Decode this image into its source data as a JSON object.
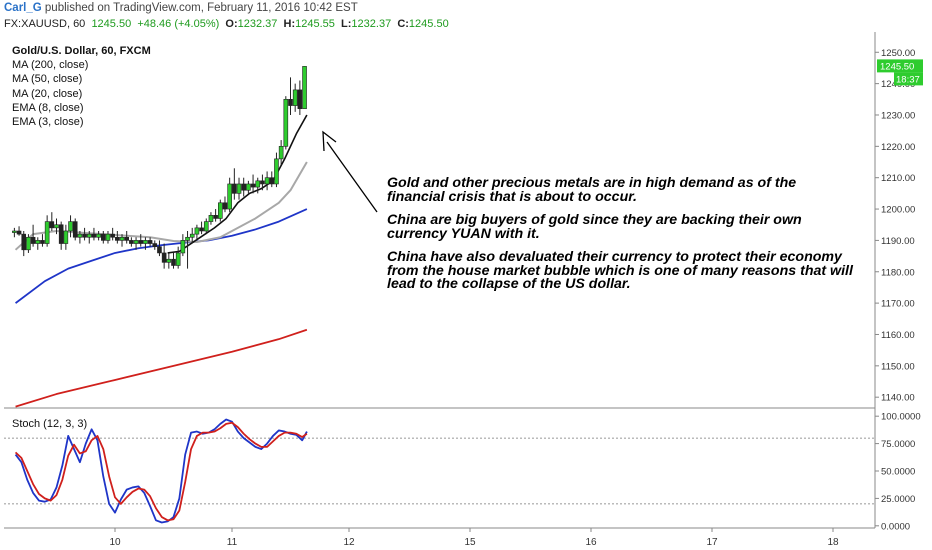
{
  "header": {
    "author": "Carl_G",
    "published_text": " published on TradingView.com, February 11, 2016 10:42 EST"
  },
  "quote": {
    "symbol": "FX:XAUUSD, 60",
    "last": "1245.50",
    "change": "+48.46 (+4.05%)",
    "open_label": "O:",
    "open": "1232.37",
    "high_label": "H:",
    "high": "1245.55",
    "low_label": "L:",
    "low": "1232.37",
    "close_label": "C:",
    "close": "1245.50"
  },
  "legend": {
    "title": "Gold/U.S. Dollar, 60, FXCM",
    "items": [
      "MA (200, close)",
      "MA (50, close)",
      "MA (20, close)",
      "EMA (8, close)",
      "EMA (3, close)"
    ]
  },
  "annotation": {
    "p1": "Gold and other precious metals are in high demand as of the financial crisis that is about to occur.",
    "p2": "China are big buyers of gold since they are backing their own currency YUAN with it.",
    "p3": "China have also devaluated their currency to protect their economy from the house market bubble which is one of many reasons that will lead to the collapse of the US dollar."
  },
  "stoch_label": "Stoch (12, 3, 3)",
  "colors": {
    "up": "#2ecc2e",
    "down": "#222222",
    "ma200": "#d0201c",
    "ma50": "#1f35c8",
    "ma20": "#a8a8a8",
    "ema8": "#111111",
    "stoch_k": "#1f35c8",
    "stoch_d": "#d0201c",
    "price_tag": "#2ecc2e",
    "author": "#2a72c8"
  },
  "chart_data": [
    {
      "type": "candlestick",
      "title": "Gold/U.S. Dollar, 60, FXCM",
      "x_ticks": [
        "10",
        "11",
        "12",
        "15",
        "16",
        "17",
        "18"
      ],
      "y_ticks": [
        "1140.00",
        "1150.00",
        "1160.00",
        "1170.00",
        "1180.00",
        "1190.00",
        "1200.00",
        "1210.00",
        "1220.00",
        "1230.00",
        "1240.00",
        "1250.00"
      ],
      "ylim": [
        1134,
        1252
      ],
      "last_price_tag": "1245.50",
      "countdown_tag": "18:37",
      "x_range_days": [
        9.15,
        11.95
      ],
      "candles": [
        {
          "t": 9.14,
          "o": 1192.5,
          "h": 1194,
          "l": 1191,
          "c": 1193
        },
        {
          "t": 9.18,
          "o": 1193,
          "h": 1194.5,
          "l": 1191.5,
          "c": 1192
        },
        {
          "t": 9.22,
          "o": 1192,
          "h": 1193,
          "l": 1185,
          "c": 1187
        },
        {
          "t": 9.26,
          "o": 1187,
          "h": 1192,
          "l": 1186,
          "c": 1191
        },
        {
          "t": 9.3,
          "o": 1191,
          "h": 1195,
          "l": 1188,
          "c": 1189
        },
        {
          "t": 9.34,
          "o": 1189,
          "h": 1191,
          "l": 1187,
          "c": 1190
        },
        {
          "t": 9.38,
          "o": 1190,
          "h": 1192,
          "l": 1188,
          "c": 1189
        },
        {
          "t": 9.42,
          "o": 1189,
          "h": 1198,
          "l": 1188,
          "c": 1196
        },
        {
          "t": 9.46,
          "o": 1196,
          "h": 1199,
          "l": 1193,
          "c": 1194
        },
        {
          "t": 9.5,
          "o": 1194,
          "h": 1197,
          "l": 1192,
          "c": 1195
        },
        {
          "t": 9.54,
          "o": 1195,
          "h": 1196,
          "l": 1187,
          "c": 1189
        },
        {
          "t": 9.58,
          "o": 1189,
          "h": 1195,
          "l": 1187,
          "c": 1193
        },
        {
          "t": 9.62,
          "o": 1193,
          "h": 1198,
          "l": 1191,
          "c": 1196
        },
        {
          "t": 9.66,
          "o": 1196,
          "h": 1197,
          "l": 1190,
          "c": 1191
        },
        {
          "t": 9.7,
          "o": 1191,
          "h": 1193,
          "l": 1189,
          "c": 1192
        },
        {
          "t": 9.74,
          "o": 1192,
          "h": 1194,
          "l": 1190,
          "c": 1191
        },
        {
          "t": 9.78,
          "o": 1191,
          "h": 1193,
          "l": 1189,
          "c": 1192
        },
        {
          "t": 9.82,
          "o": 1192,
          "h": 1194,
          "l": 1190,
          "c": 1191
        },
        {
          "t": 9.86,
          "o": 1191,
          "h": 1193,
          "l": 1190,
          "c": 1192
        },
        {
          "t": 9.9,
          "o": 1192,
          "h": 1193,
          "l": 1189,
          "c": 1190
        },
        {
          "t": 9.94,
          "o": 1190,
          "h": 1193,
          "l": 1189,
          "c": 1192
        },
        {
          "t": 9.98,
          "o": 1192,
          "h": 1194,
          "l": 1190,
          "c": 1191
        },
        {
          "t": 10.02,
          "o": 1191,
          "h": 1193,
          "l": 1189,
          "c": 1190
        },
        {
          "t": 10.06,
          "o": 1190,
          "h": 1192,
          "l": 1188,
          "c": 1191
        },
        {
          "t": 10.1,
          "o": 1191,
          "h": 1193,
          "l": 1189,
          "c": 1190
        },
        {
          "t": 10.14,
          "o": 1190,
          "h": 1191,
          "l": 1188,
          "c": 1189
        },
        {
          "t": 10.18,
          "o": 1189,
          "h": 1191,
          "l": 1187,
          "c": 1190
        },
        {
          "t": 10.22,
          "o": 1190,
          "h": 1192,
          "l": 1188,
          "c": 1189
        },
        {
          "t": 10.26,
          "o": 1189,
          "h": 1191,
          "l": 1187,
          "c": 1190
        },
        {
          "t": 10.3,
          "o": 1190,
          "h": 1191,
          "l": 1188,
          "c": 1189
        },
        {
          "t": 10.34,
          "o": 1189,
          "h": 1190,
          "l": 1187,
          "c": 1188
        },
        {
          "t": 10.38,
          "o": 1188,
          "h": 1190,
          "l": 1185,
          "c": 1186
        },
        {
          "t": 10.42,
          "o": 1186,
          "h": 1189,
          "l": 1181,
          "c": 1183
        },
        {
          "t": 10.46,
          "o": 1183,
          "h": 1186,
          "l": 1181,
          "c": 1184
        },
        {
          "t": 10.5,
          "o": 1184,
          "h": 1186,
          "l": 1181,
          "c": 1182
        },
        {
          "t": 10.54,
          "o": 1182,
          "h": 1188,
          "l": 1181,
          "c": 1186
        },
        {
          "t": 10.58,
          "o": 1186,
          "h": 1192,
          "l": 1185,
          "c": 1190
        },
        {
          "t": 10.62,
          "o": 1190,
          "h": 1193,
          "l": 1181,
          "c": 1191
        },
        {
          "t": 10.66,
          "o": 1191,
          "h": 1194,
          "l": 1189,
          "c": 1192
        },
        {
          "t": 10.7,
          "o": 1192,
          "h": 1195,
          "l": 1190,
          "c": 1194
        },
        {
          "t": 10.74,
          "o": 1194,
          "h": 1196,
          "l": 1192,
          "c": 1193
        },
        {
          "t": 10.78,
          "o": 1193,
          "h": 1197,
          "l": 1192,
          "c": 1196
        },
        {
          "t": 10.82,
          "o": 1196,
          "h": 1199,
          "l": 1195,
          "c": 1198
        },
        {
          "t": 10.86,
          "o": 1198,
          "h": 1200,
          "l": 1196,
          "c": 1197
        },
        {
          "t": 10.9,
          "o": 1197,
          "h": 1203,
          "l": 1196,
          "c": 1202
        },
        {
          "t": 10.94,
          "o": 1202,
          "h": 1204,
          "l": 1199,
          "c": 1200
        },
        {
          "t": 10.98,
          "o": 1200,
          "h": 1210,
          "l": 1199,
          "c": 1208
        },
        {
          "t": 11.02,
          "o": 1208,
          "h": 1213,
          "l": 1203,
          "c": 1205
        },
        {
          "t": 11.06,
          "o": 1205,
          "h": 1210,
          "l": 1203,
          "c": 1208
        },
        {
          "t": 11.1,
          "o": 1208,
          "h": 1210,
          "l": 1204,
          "c": 1206
        },
        {
          "t": 11.14,
          "o": 1206,
          "h": 1209,
          "l": 1205,
          "c": 1208
        },
        {
          "t": 11.18,
          "o": 1208,
          "h": 1211,
          "l": 1205,
          "c": 1207
        },
        {
          "t": 11.22,
          "o": 1207,
          "h": 1210,
          "l": 1205,
          "c": 1209
        },
        {
          "t": 11.26,
          "o": 1209,
          "h": 1211,
          "l": 1206,
          "c": 1208
        },
        {
          "t": 11.3,
          "o": 1208,
          "h": 1212,
          "l": 1206,
          "c": 1210
        },
        {
          "t": 11.34,
          "o": 1210,
          "h": 1212,
          "l": 1207,
          "c": 1208
        },
        {
          "t": 11.38,
          "o": 1208,
          "h": 1218,
          "l": 1207,
          "c": 1216
        },
        {
          "t": 11.42,
          "o": 1216,
          "h": 1222,
          "l": 1214,
          "c": 1220
        },
        {
          "t": 11.46,
          "o": 1220,
          "h": 1236,
          "l": 1219,
          "c": 1235
        },
        {
          "t": 11.5,
          "o": 1235,
          "h": 1242,
          "l": 1230,
          "c": 1233
        },
        {
          "t": 11.54,
          "o": 1233,
          "h": 1240,
          "l": 1231,
          "c": 1238
        },
        {
          "t": 11.58,
          "o": 1238,
          "h": 1241,
          "l": 1230,
          "c": 1232
        },
        {
          "t": 11.62,
          "o": 1232,
          "h": 1245.55,
          "l": 1232,
          "c": 1245.5
        }
      ],
      "series": [
        {
          "name": "MA (200, close)",
          "x": [
            9.15,
            9.5,
            10.0,
            10.5,
            11.0,
            11.4,
            11.64
          ],
          "values": [
            1137,
            1141,
            1145.5,
            1150,
            1154.5,
            1158.5,
            1161.5
          ]
        },
        {
          "name": "MA (50, close)",
          "x": [
            9.15,
            9.4,
            9.6,
            9.8,
            10.0,
            10.2,
            10.4,
            10.6,
            10.8,
            11.0,
            11.2,
            11.4,
            11.64
          ],
          "values": [
            1170,
            1177,
            1181,
            1183.5,
            1186,
            1187.5,
            1188.5,
            1189.3,
            1190,
            1191.5,
            1193.5,
            1196,
            1200
          ]
        },
        {
          "name": "MA (20, close)",
          "x": [
            9.15,
            9.3,
            9.5,
            9.7,
            9.9,
            10.1,
            10.3,
            10.5,
            10.7,
            10.9,
            11.0,
            11.2,
            11.4,
            11.5,
            11.64
          ],
          "values": [
            1187,
            1192,
            1193,
            1192.5,
            1192,
            1191.5,
            1191,
            1189.8,
            1189.5,
            1191,
            1193,
            1197,
            1202,
            1206,
            1215
          ]
        },
        {
          "name": "EMA (8, close)",
          "x": [
            10.45,
            10.55,
            10.65,
            10.75,
            10.85,
            10.95,
            11.05,
            11.15,
            11.25,
            11.35,
            11.45,
            11.55,
            11.64
          ],
          "values": [
            1186,
            1186.5,
            1189,
            1191.5,
            1194,
            1197,
            1202,
            1205,
            1206.5,
            1209,
            1216,
            1224,
            1230
          ]
        }
      ]
    },
    {
      "type": "line",
      "title": "Stoch (12, 3, 3)",
      "y_ticks": [
        "0.0000",
        "25.0000",
        "50.0000",
        "75.0000",
        "100.0000"
      ],
      "ylim": [
        -2,
        102
      ],
      "reference_lines": [
        20,
        80
      ],
      "series": [
        {
          "name": "%K",
          "x": [
            9.15,
            9.2,
            9.25,
            9.3,
            9.35,
            9.4,
            9.45,
            9.5,
            9.55,
            9.6,
            9.65,
            9.7,
            9.75,
            9.8,
            9.85,
            9.9,
            9.95,
            10.0,
            10.05,
            10.1,
            10.15,
            10.2,
            10.25,
            10.3,
            10.35,
            10.4,
            10.45,
            10.5,
            10.55,
            10.6,
            10.65,
            10.7,
            10.75,
            10.8,
            10.85,
            10.9,
            10.95,
            11.0,
            11.05,
            11.1,
            11.15,
            11.2,
            11.25,
            11.3,
            11.35,
            11.4,
            11.45,
            11.5,
            11.55,
            11.6,
            11.64
          ],
          "values": [
            65,
            58,
            42,
            30,
            23,
            22,
            24,
            35,
            55,
            82,
            70,
            58,
            75,
            88,
            78,
            45,
            20,
            12,
            24,
            33,
            35,
            36,
            30,
            18,
            5,
            3,
            4,
            8,
            25,
            65,
            85,
            86,
            84,
            85,
            88,
            93,
            97,
            95,
            86,
            80,
            76,
            72,
            70,
            75,
            82,
            87,
            86,
            84,
            83,
            78,
            86
          ]
        },
        {
          "name": "%D",
          "x": [
            9.15,
            9.2,
            9.25,
            9.3,
            9.35,
            9.4,
            9.45,
            9.5,
            9.55,
            9.6,
            9.65,
            9.7,
            9.75,
            9.8,
            9.85,
            9.9,
            9.95,
            10.0,
            10.05,
            10.1,
            10.15,
            10.2,
            10.25,
            10.3,
            10.35,
            10.4,
            10.45,
            10.5,
            10.55,
            10.6,
            10.65,
            10.7,
            10.75,
            10.8,
            10.85,
            10.9,
            10.95,
            11.0,
            11.05,
            11.1,
            11.15,
            11.2,
            11.25,
            11.3,
            11.35,
            11.4,
            11.45,
            11.5,
            11.55,
            11.6,
            11.64
          ],
          "values": [
            67,
            62,
            50,
            38,
            29,
            25,
            23,
            28,
            42,
            64,
            74,
            66,
            68,
            78,
            82,
            70,
            45,
            26,
            20,
            26,
            31,
            34,
            33,
            27,
            16,
            8,
            5,
            6,
            14,
            40,
            70,
            82,
            85,
            85,
            86,
            89,
            93,
            94,
            90,
            84,
            79,
            75,
            72,
            72,
            77,
            82,
            85,
            85,
            84,
            81,
            84
          ]
        }
      ]
    }
  ]
}
